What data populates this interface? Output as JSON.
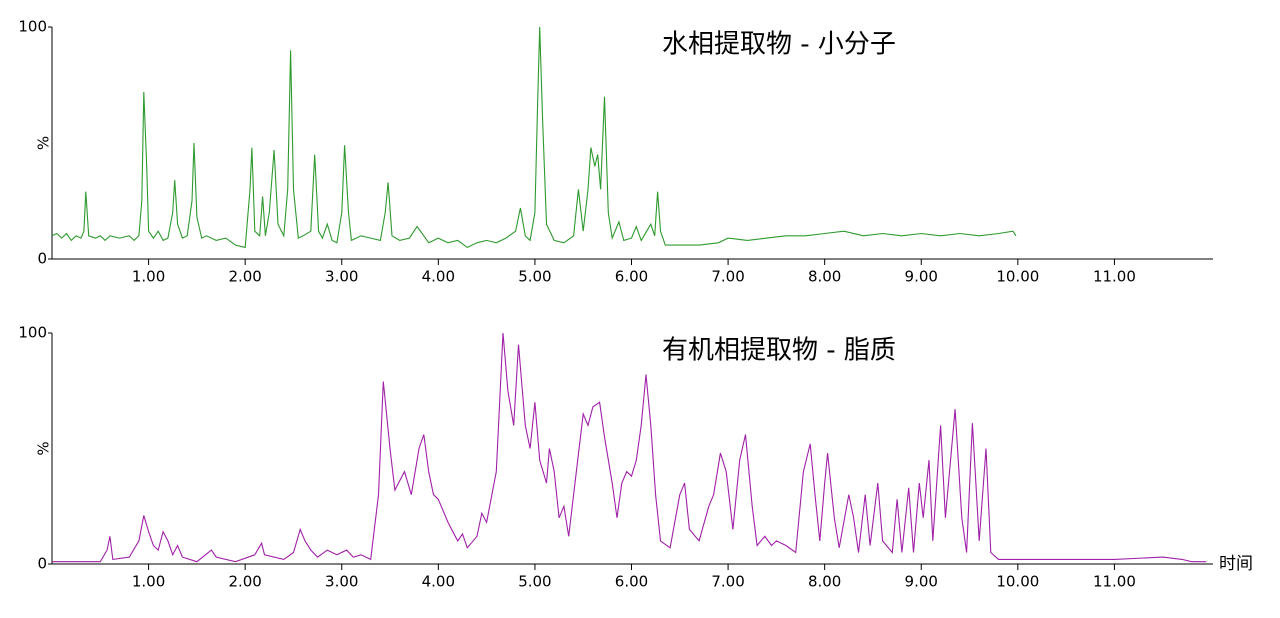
{
  "chart_data": [
    {
      "type": "line",
      "title": "水相提取物 - 小分子",
      "y_label": "%",
      "color": "#2e9a2e",
      "xlim": [
        0,
        12
      ],
      "ylim": [
        0,
        100
      ],
      "xticks": [
        {
          "value": 1,
          "label": "1.00"
        },
        {
          "value": 2,
          "label": "2.00"
        },
        {
          "value": 3,
          "label": "3.00"
        },
        {
          "value": 4,
          "label": "4.00"
        },
        {
          "value": 5,
          "label": "5.00"
        },
        {
          "value": 6,
          "label": "6.00"
        },
        {
          "value": 7,
          "label": "7.00"
        },
        {
          "value": 8,
          "label": "8.00"
        },
        {
          "value": 9,
          "label": "9.00"
        },
        {
          "value": 10,
          "label": "10.00"
        },
        {
          "value": 11,
          "label": "11.00"
        }
      ],
      "yticks": [
        0,
        100
      ],
      "x": [
        0,
        0.05,
        0.1,
        0.15,
        0.2,
        0.25,
        0.3,
        0.33,
        0.35,
        0.38,
        0.45,
        0.5,
        0.55,
        0.6,
        0.7,
        0.8,
        0.85,
        0.9,
        0.93,
        0.95,
        0.98,
        1.0,
        1.05,
        1.1,
        1.15,
        1.2,
        1.25,
        1.27,
        1.3,
        1.35,
        1.4,
        1.45,
        1.47,
        1.5,
        1.55,
        1.6,
        1.7,
        1.8,
        1.9,
        2.0,
        2.05,
        2.07,
        2.1,
        2.15,
        2.18,
        2.21,
        2.25,
        2.3,
        2.34,
        2.4,
        2.44,
        2.47,
        2.5,
        2.55,
        2.6,
        2.68,
        2.72,
        2.76,
        2.8,
        2.85,
        2.9,
        2.95,
        3.0,
        3.03,
        3.07,
        3.1,
        3.2,
        3.3,
        3.4,
        3.45,
        3.48,
        3.52,
        3.6,
        3.7,
        3.78,
        3.85,
        3.9,
        4.0,
        4.1,
        4.2,
        4.3,
        4.4,
        4.5,
        4.6,
        4.7,
        4.8,
        4.85,
        4.9,
        4.95,
        5.0,
        5.03,
        5.05,
        5.08,
        5.12,
        5.2,
        5.3,
        5.4,
        5.45,
        5.5,
        5.55,
        5.58,
        5.62,
        5.65,
        5.68,
        5.72,
        5.76,
        5.8,
        5.87,
        5.92,
        6.0,
        6.05,
        6.1,
        6.2,
        6.24,
        6.27,
        6.3,
        6.35,
        6.5,
        6.7,
        6.9,
        7.0,
        7.2,
        7.4,
        7.6,
        7.8,
        8.0,
        8.2,
        8.4,
        8.6,
        8.8,
        9.0,
        9.2,
        9.4,
        9.6,
        9.8,
        9.95,
        9.98
      ],
      "values": [
        10,
        11,
        9,
        11,
        8,
        10,
        9,
        12,
        29,
        10,
        9,
        10,
        8,
        10,
        9,
        10,
        8,
        10,
        25,
        72,
        40,
        12,
        9,
        12,
        8,
        9,
        20,
        34,
        15,
        9,
        10,
        25,
        50,
        18,
        9,
        10,
        8,
        9,
        6,
        5,
        30,
        48,
        12,
        10,
        27,
        10,
        20,
        47,
        15,
        10,
        30,
        90,
        30,
        9,
        10,
        12,
        45,
        12,
        9,
        15,
        8,
        7,
        20,
        49,
        20,
        8,
        10,
        9,
        8,
        20,
        33,
        10,
        8,
        9,
        14,
        10,
        7,
        9,
        7,
        8,
        5,
        7,
        8,
        7,
        9,
        12,
        22,
        10,
        8,
        20,
        70,
        100,
        60,
        15,
        8,
        7,
        10,
        30,
        12,
        30,
        48,
        40,
        45,
        30,
        70,
        20,
        9,
        16,
        8,
        9,
        14,
        8,
        15,
        10,
        29,
        12,
        6,
        6,
        6,
        7,
        9,
        8,
        9,
        10,
        10,
        11,
        12,
        10,
        11,
        10,
        11,
        10,
        11,
        10,
        11,
        12,
        10
      ]
    },
    {
      "type": "line",
      "title": "有机相提取物 - 脂质",
      "y_label": "%",
      "x_label": "时间",
      "color": "#a020a8",
      "xlim": [
        0,
        12
      ],
      "ylim": [
        0,
        100
      ],
      "xticks": [
        {
          "value": 1,
          "label": "1.00"
        },
        {
          "value": 2,
          "label": "2.00"
        },
        {
          "value": 3,
          "label": "3.00"
        },
        {
          "value": 4,
          "label": "4.00"
        },
        {
          "value": 5,
          "label": "5.00"
        },
        {
          "value": 6,
          "label": "6.00"
        },
        {
          "value": 7,
          "label": "7.00"
        },
        {
          "value": 8,
          "label": "8.00"
        },
        {
          "value": 9,
          "label": "9.00"
        },
        {
          "value": 10,
          "label": "10.00"
        },
        {
          "value": 11,
          "label": "11.00"
        }
      ],
      "yticks": [
        0,
        100
      ],
      "x": [
        0,
        0.5,
        0.57,
        0.6,
        0.63,
        0.8,
        0.9,
        0.95,
        1.0,
        1.05,
        1.1,
        1.15,
        1.2,
        1.25,
        1.3,
        1.35,
        1.5,
        1.65,
        1.7,
        1.9,
        2.1,
        2.17,
        2.2,
        2.4,
        2.5,
        2.57,
        2.62,
        2.68,
        2.75,
        2.85,
        2.95,
        3.05,
        3.12,
        3.2,
        3.3,
        3.38,
        3.43,
        3.5,
        3.55,
        3.6,
        3.65,
        3.72,
        3.8,
        3.85,
        3.9,
        3.95,
        4.0,
        4.1,
        4.2,
        4.25,
        4.3,
        4.4,
        4.45,
        4.5,
        4.6,
        4.67,
        4.72,
        4.78,
        4.83,
        4.9,
        4.95,
        5.0,
        5.05,
        5.12,
        5.15,
        5.2,
        5.25,
        5.3,
        5.35,
        5.4,
        5.5,
        5.55,
        5.6,
        5.67,
        5.72,
        5.8,
        5.85,
        5.9,
        5.95,
        6.0,
        6.05,
        6.1,
        6.15,
        6.2,
        6.25,
        6.3,
        6.4,
        6.5,
        6.55,
        6.6,
        6.7,
        6.8,
        6.85,
        6.92,
        6.98,
        7.05,
        7.12,
        7.18,
        7.25,
        7.3,
        7.38,
        7.45,
        7.5,
        7.6,
        7.7,
        7.78,
        7.85,
        7.9,
        7.95,
        8.0,
        8.03,
        8.1,
        8.15,
        8.25,
        8.3,
        8.35,
        8.42,
        8.47,
        8.55,
        8.6,
        8.7,
        8.75,
        8.8,
        8.87,
        8.92,
        8.98,
        9.02,
        9.08,
        9.12,
        9.2,
        9.25,
        9.35,
        9.42,
        9.47,
        9.53,
        9.6,
        9.67,
        9.72,
        9.8,
        10.0,
        10.5,
        11.0,
        11.5,
        11.7,
        11.8,
        11.95
      ],
      "values": [
        1,
        1,
        6,
        12,
        2,
        3,
        10,
        21,
        14,
        8,
        6,
        14,
        10,
        4,
        8,
        3,
        1,
        6,
        3,
        1,
        4,
        9,
        4,
        2,
        5,
        15,
        10,
        6,
        3,
        6,
        4,
        6,
        3,
        4,
        2,
        30,
        79,
        50,
        32,
        36,
        40,
        30,
        50,
        56,
        40,
        30,
        28,
        18,
        10,
        13,
        7,
        12,
        22,
        18,
        40,
        100,
        75,
        60,
        95,
        60,
        50,
        70,
        45,
        35,
        50,
        40,
        20,
        25,
        12,
        30,
        65,
        60,
        68,
        70,
        55,
        35,
        20,
        35,
        40,
        38,
        45,
        60,
        82,
        60,
        30,
        10,
        7,
        30,
        35,
        15,
        10,
        25,
        30,
        48,
        40,
        15,
        45,
        56,
        25,
        8,
        12,
        8,
        10,
        8,
        5,
        40,
        52,
        30,
        10,
        35,
        48,
        20,
        7,
        30,
        20,
        5,
        30,
        8,
        35,
        10,
        5,
        28,
        5,
        33,
        5,
        35,
        20,
        45,
        10,
        60,
        20,
        67,
        20,
        5,
        61,
        10,
        50,
        5,
        2,
        2,
        2,
        2,
        3,
        2,
        1,
        1
      ]
    }
  ]
}
